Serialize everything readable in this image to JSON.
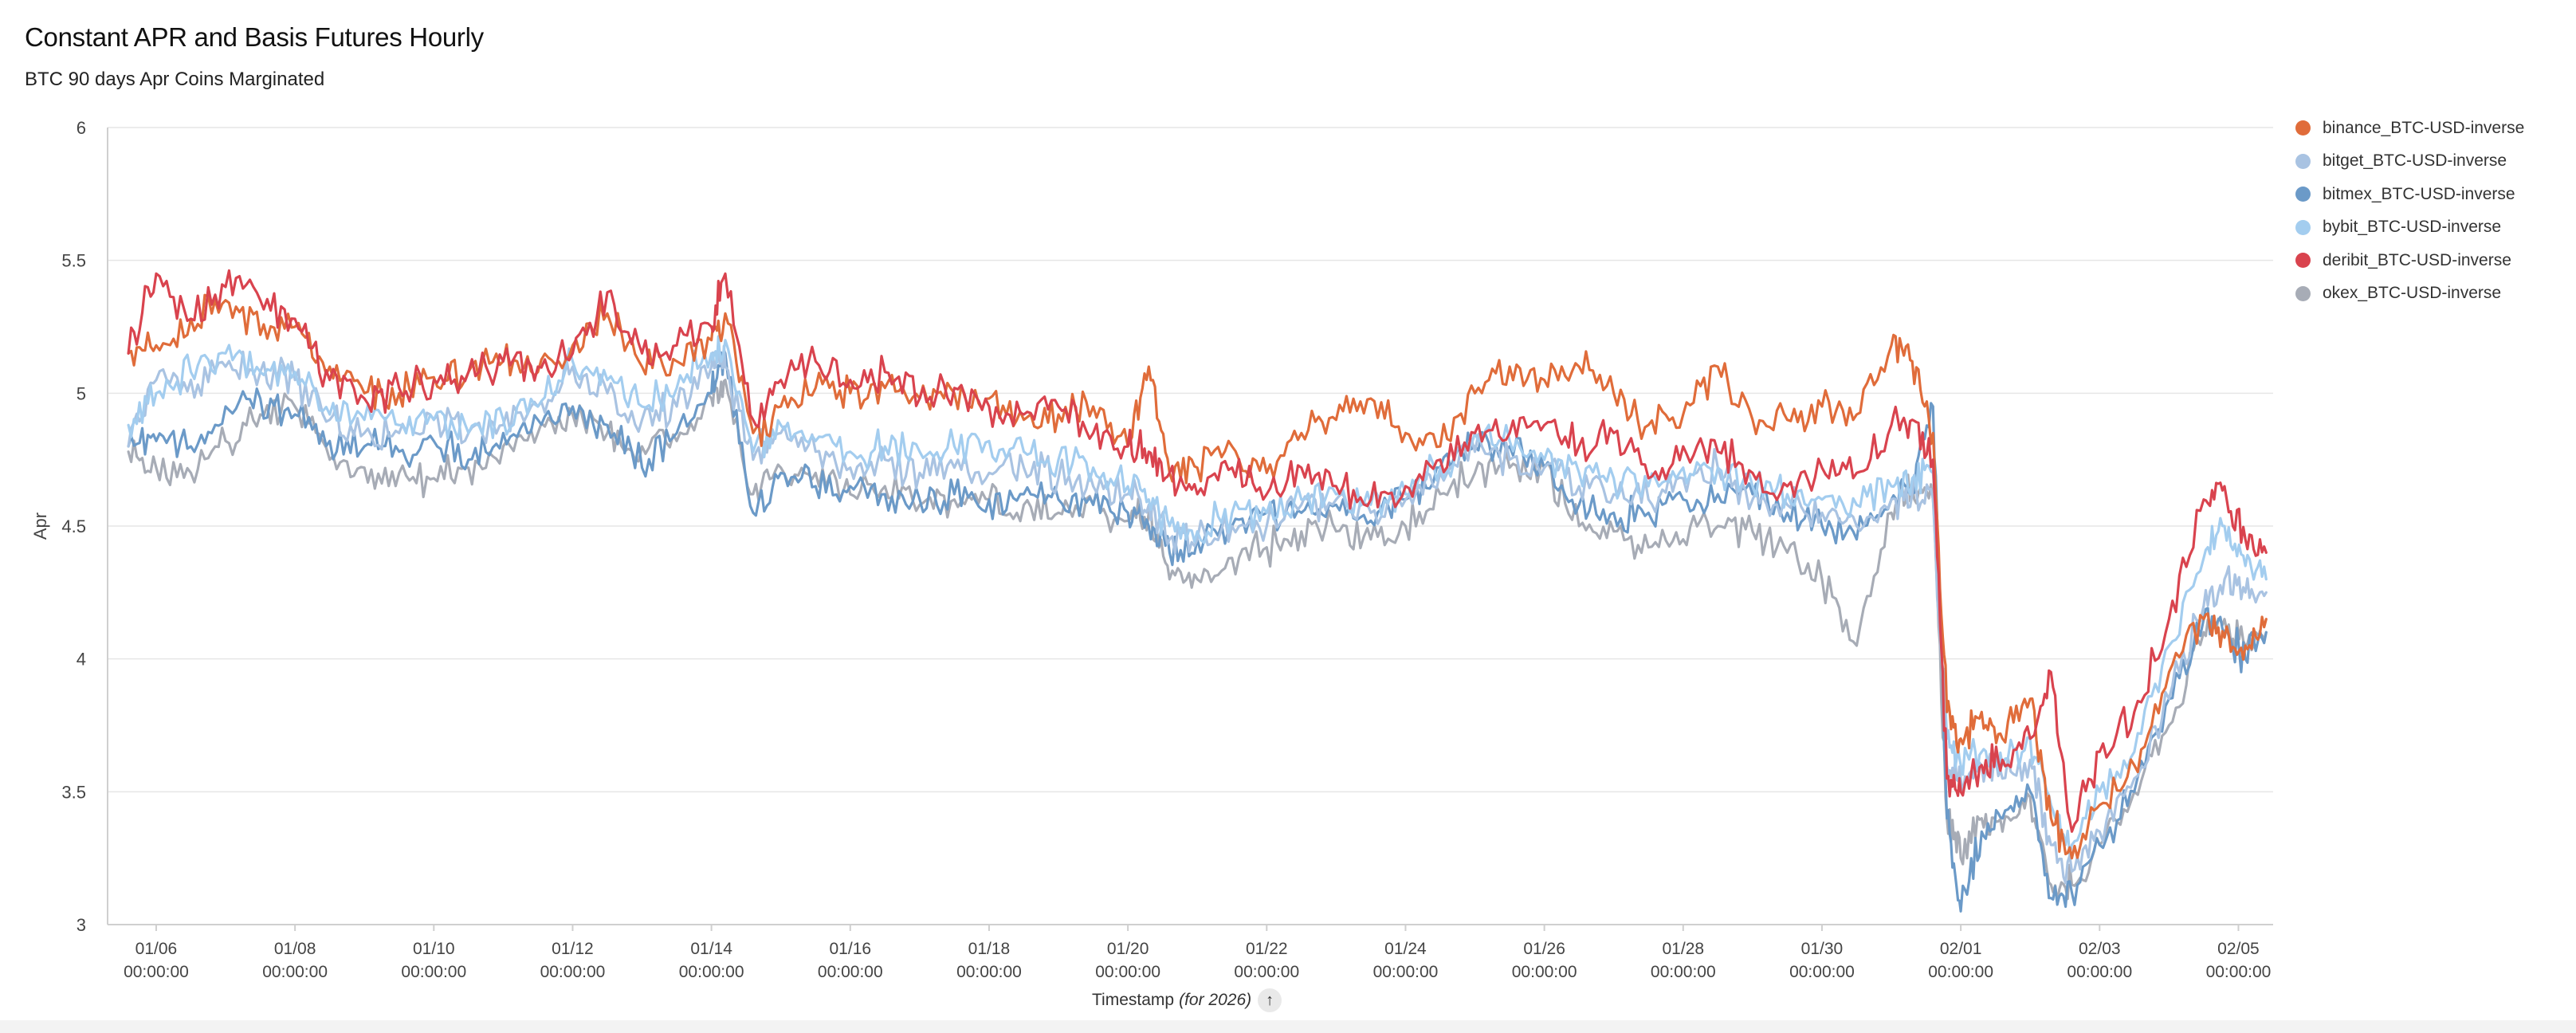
{
  "title": "Constant APR and Basis Futures Hourly",
  "subtitle": "BTC 90 days Apr Coins Marginated",
  "x_axis": {
    "title": "Timestamp",
    "title_note": "(for 2026)",
    "sort_icon": "arrow-up-icon"
  },
  "legend": [
    {
      "label": "binance_BTC-USD-inverse",
      "color": "#e06c3a"
    },
    {
      "label": "bitget_BTC-USD-inverse",
      "color": "#a9c3e2"
    },
    {
      "label": "bitmex_BTC-USD-inverse",
      "color": "#6b9ac8"
    },
    {
      "label": "bybit_BTC-USD-inverse",
      "color": "#a3cdef"
    },
    {
      "label": "deribit_BTC-USD-inverse",
      "color": "#d9434e"
    },
    {
      "label": "okex_BTC-USD-inverse",
      "color": "#a7acb6"
    }
  ],
  "chart_data": {
    "type": "line",
    "title": "Constant APR and Basis Futures Hourly",
    "subtitle": "BTC 90 days Apr Coins Marginated",
    "xlabel": "Timestamp (for 2026)",
    "ylabel": "Apr",
    "ylim": [
      3,
      6
    ],
    "yticks": [
      "6",
      "5.5",
      "5",
      "4.5",
      "4",
      "3.5",
      "3"
    ],
    "xlim": [
      5.3,
      36.5
    ],
    "xticks": [
      {
        "day": 6,
        "date": "01/06",
        "time": "00:00:00"
      },
      {
        "day": 8,
        "date": "01/08",
        "time": "00:00:00"
      },
      {
        "day": 10,
        "date": "01/10",
        "time": "00:00:00"
      },
      {
        "day": 12,
        "date": "01/12",
        "time": "00:00:00"
      },
      {
        "day": 14,
        "date": "01/14",
        "time": "00:00:00"
      },
      {
        "day": 16,
        "date": "01/16",
        "time": "00:00:00"
      },
      {
        "day": 18,
        "date": "01/18",
        "time": "00:00:00"
      },
      {
        "day": 20,
        "date": "01/20",
        "time": "00:00:00"
      },
      {
        "day": 22,
        "date": "01/22",
        "time": "00:00:00"
      },
      {
        "day": 24,
        "date": "01/24",
        "time": "00:00:00"
      },
      {
        "day": 26,
        "date": "01/26",
        "time": "00:00:00"
      },
      {
        "day": 28,
        "date": "01/28",
        "time": "00:00:00"
      },
      {
        "day": 30,
        "date": "01/30",
        "time": "00:00:00"
      },
      {
        "day": 32,
        "date": "02/01",
        "time": "00:00:00"
      },
      {
        "day": 34,
        "date": "02/03",
        "time": "00:00:00"
      },
      {
        "day": 36,
        "date": "02/05",
        "time": "00:00:00"
      }
    ],
    "grid": true,
    "legend_position": "right",
    "x": [
      5.6,
      6,
      6.5,
      7,
      7.5,
      8,
      8.5,
      9,
      9.5,
      10,
      10.5,
      11,
      11.5,
      12,
      12.5,
      13,
      13.5,
      14,
      14.2,
      14.6,
      15,
      15.5,
      16,
      16.5,
      17,
      17.5,
      18,
      18.5,
      19,
      19.5,
      20,
      20.3,
      20.6,
      21,
      21.5,
      22,
      22.5,
      23,
      23.5,
      24,
      24.5,
      25,
      25.5,
      26,
      26.5,
      27,
      27.5,
      28,
      28.5,
      29,
      29.5,
      30,
      30.5,
      31,
      31.3,
      31.6,
      31.8,
      32,
      32.3,
      32.6,
      33,
      33.3,
      33.6,
      34,
      34.5,
      35,
      35.5,
      35.8,
      36.1,
      36.4
    ],
    "series": [
      {
        "name": "binance_BTC-USD-inverse",
        "values": [
          5.15,
          5.18,
          5.28,
          5.35,
          5.22,
          5.25,
          5.1,
          5.0,
          5.0,
          5.06,
          5.08,
          5.12,
          5.08,
          5.18,
          5.3,
          5.1,
          5.12,
          5.2,
          5.3,
          4.85,
          4.95,
          5.02,
          5.0,
          5.02,
          4.98,
          5.0,
          4.98,
          4.9,
          4.92,
          4.95,
          4.8,
          5.1,
          4.7,
          4.72,
          4.8,
          4.7,
          4.85,
          4.9,
          4.98,
          4.85,
          4.8,
          5.0,
          5.1,
          5.05,
          5.1,
          5.0,
          4.88,
          4.92,
          5.1,
          4.9,
          4.9,
          4.95,
          4.92,
          5.18,
          5.12,
          4.85,
          3.8,
          3.7,
          3.8,
          3.7,
          3.85,
          3.4,
          3.25,
          3.45,
          3.6,
          3.95,
          4.15,
          4.08,
          4.05,
          4.15
        ]
      },
      {
        "name": "bitget_BTC-USD-inverse",
        "values": [
          4.8,
          5.05,
          5.05,
          5.1,
          5.08,
          5.05,
          4.9,
          4.85,
          4.85,
          4.9,
          4.85,
          4.88,
          4.95,
          5.1,
          5.0,
          4.9,
          4.95,
          5.1,
          5.1,
          4.75,
          4.85,
          4.78,
          4.72,
          4.75,
          4.7,
          4.72,
          4.7,
          4.72,
          4.68,
          4.65,
          4.62,
          4.58,
          4.45,
          4.45,
          4.5,
          4.5,
          4.58,
          4.6,
          4.55,
          4.6,
          4.7,
          4.78,
          4.75,
          4.72,
          4.65,
          4.62,
          4.6,
          4.68,
          4.72,
          4.6,
          4.58,
          4.55,
          4.5,
          4.6,
          4.62,
          4.6,
          3.6,
          3.55,
          3.6,
          3.55,
          3.62,
          3.3,
          3.2,
          3.35,
          3.55,
          3.85,
          4.2,
          4.3,
          4.25,
          4.25
        ]
      },
      {
        "name": "bitmex_BTC-USD-inverse",
        "values": [
          4.8,
          4.82,
          4.8,
          4.95,
          4.98,
          4.92,
          4.82,
          4.8,
          4.78,
          4.82,
          4.75,
          4.85,
          4.9,
          4.95,
          4.88,
          4.72,
          4.85,
          5.0,
          5.15,
          4.55,
          4.7,
          4.65,
          4.65,
          4.62,
          4.6,
          4.62,
          4.6,
          4.62,
          4.6,
          4.58,
          4.55,
          4.5,
          4.4,
          4.45,
          4.5,
          4.55,
          4.55,
          4.58,
          4.52,
          4.6,
          4.72,
          4.8,
          4.8,
          4.72,
          4.58,
          4.55,
          4.55,
          4.6,
          4.62,
          4.62,
          4.55,
          4.5,
          4.45,
          4.6,
          4.65,
          4.95,
          3.4,
          3.05,
          3.35,
          3.4,
          3.5,
          3.1,
          3.12,
          3.3,
          3.5,
          3.85,
          4.15,
          4.1,
          4.0,
          4.1
        ]
      },
      {
        "name": "bybit_BTC-USD-inverse",
        "values": [
          4.88,
          5.0,
          5.08,
          5.15,
          5.08,
          5.08,
          4.92,
          4.9,
          4.88,
          4.9,
          4.85,
          4.9,
          4.95,
          5.12,
          5.05,
          4.95,
          5.02,
          5.15,
          5.2,
          4.78,
          4.88,
          4.82,
          4.78,
          4.8,
          4.78,
          4.8,
          4.82,
          4.78,
          4.75,
          4.72,
          4.65,
          4.6,
          4.5,
          4.48,
          4.55,
          4.55,
          4.6,
          4.62,
          4.58,
          4.62,
          4.72,
          4.85,
          4.82,
          4.75,
          4.7,
          4.68,
          4.65,
          4.72,
          4.72,
          4.65,
          4.62,
          4.6,
          4.58,
          4.65,
          4.68,
          4.7,
          3.7,
          3.6,
          3.65,
          3.6,
          3.7,
          3.45,
          3.3,
          3.5,
          3.65,
          4.05,
          4.38,
          4.5,
          4.35,
          4.3
        ]
      },
      {
        "name": "deribit_BTC-USD-inverse",
        "values": [
          5.15,
          5.45,
          5.28,
          5.4,
          5.35,
          5.28,
          5.05,
          4.98,
          5.02,
          5.05,
          5.08,
          5.12,
          5.1,
          5.15,
          5.38,
          5.15,
          5.18,
          5.25,
          5.45,
          4.9,
          5.05,
          5.12,
          5.05,
          5.08,
          4.98,
          5.02,
          4.95,
          4.92,
          4.95,
          4.85,
          4.8,
          4.78,
          4.7,
          4.62,
          4.72,
          4.62,
          4.72,
          4.65,
          4.6,
          4.65,
          4.75,
          4.85,
          4.85,
          4.88,
          4.8,
          4.85,
          4.68,
          4.8,
          4.78,
          4.7,
          4.65,
          4.72,
          4.7,
          4.88,
          4.9,
          4.75,
          3.55,
          3.5,
          3.6,
          3.62,
          3.7,
          3.95,
          3.35,
          3.65,
          3.8,
          4.15,
          4.6,
          4.65,
          4.45,
          4.4
        ]
      },
      {
        "name": "okex_BTC-USD-inverse",
        "values": [
          4.78,
          4.72,
          4.7,
          4.82,
          4.92,
          4.95,
          4.75,
          4.72,
          4.7,
          4.68,
          4.72,
          4.8,
          4.85,
          4.92,
          4.85,
          4.8,
          4.82,
          4.98,
          5.05,
          4.62,
          4.72,
          4.7,
          4.62,
          4.65,
          4.58,
          4.6,
          4.6,
          4.58,
          4.55,
          4.58,
          4.52,
          4.55,
          4.3,
          4.3,
          4.38,
          4.42,
          4.48,
          4.48,
          4.45,
          4.5,
          4.62,
          4.7,
          4.72,
          4.72,
          4.5,
          4.48,
          4.42,
          4.45,
          4.5,
          4.48,
          4.4,
          4.3,
          4.05,
          4.55,
          4.65,
          4.6,
          3.4,
          3.25,
          3.4,
          3.35,
          3.48,
          3.15,
          3.15,
          3.3,
          3.5,
          3.75,
          4.1,
          4.15,
          4.05,
          4.1
        ]
      }
    ]
  }
}
